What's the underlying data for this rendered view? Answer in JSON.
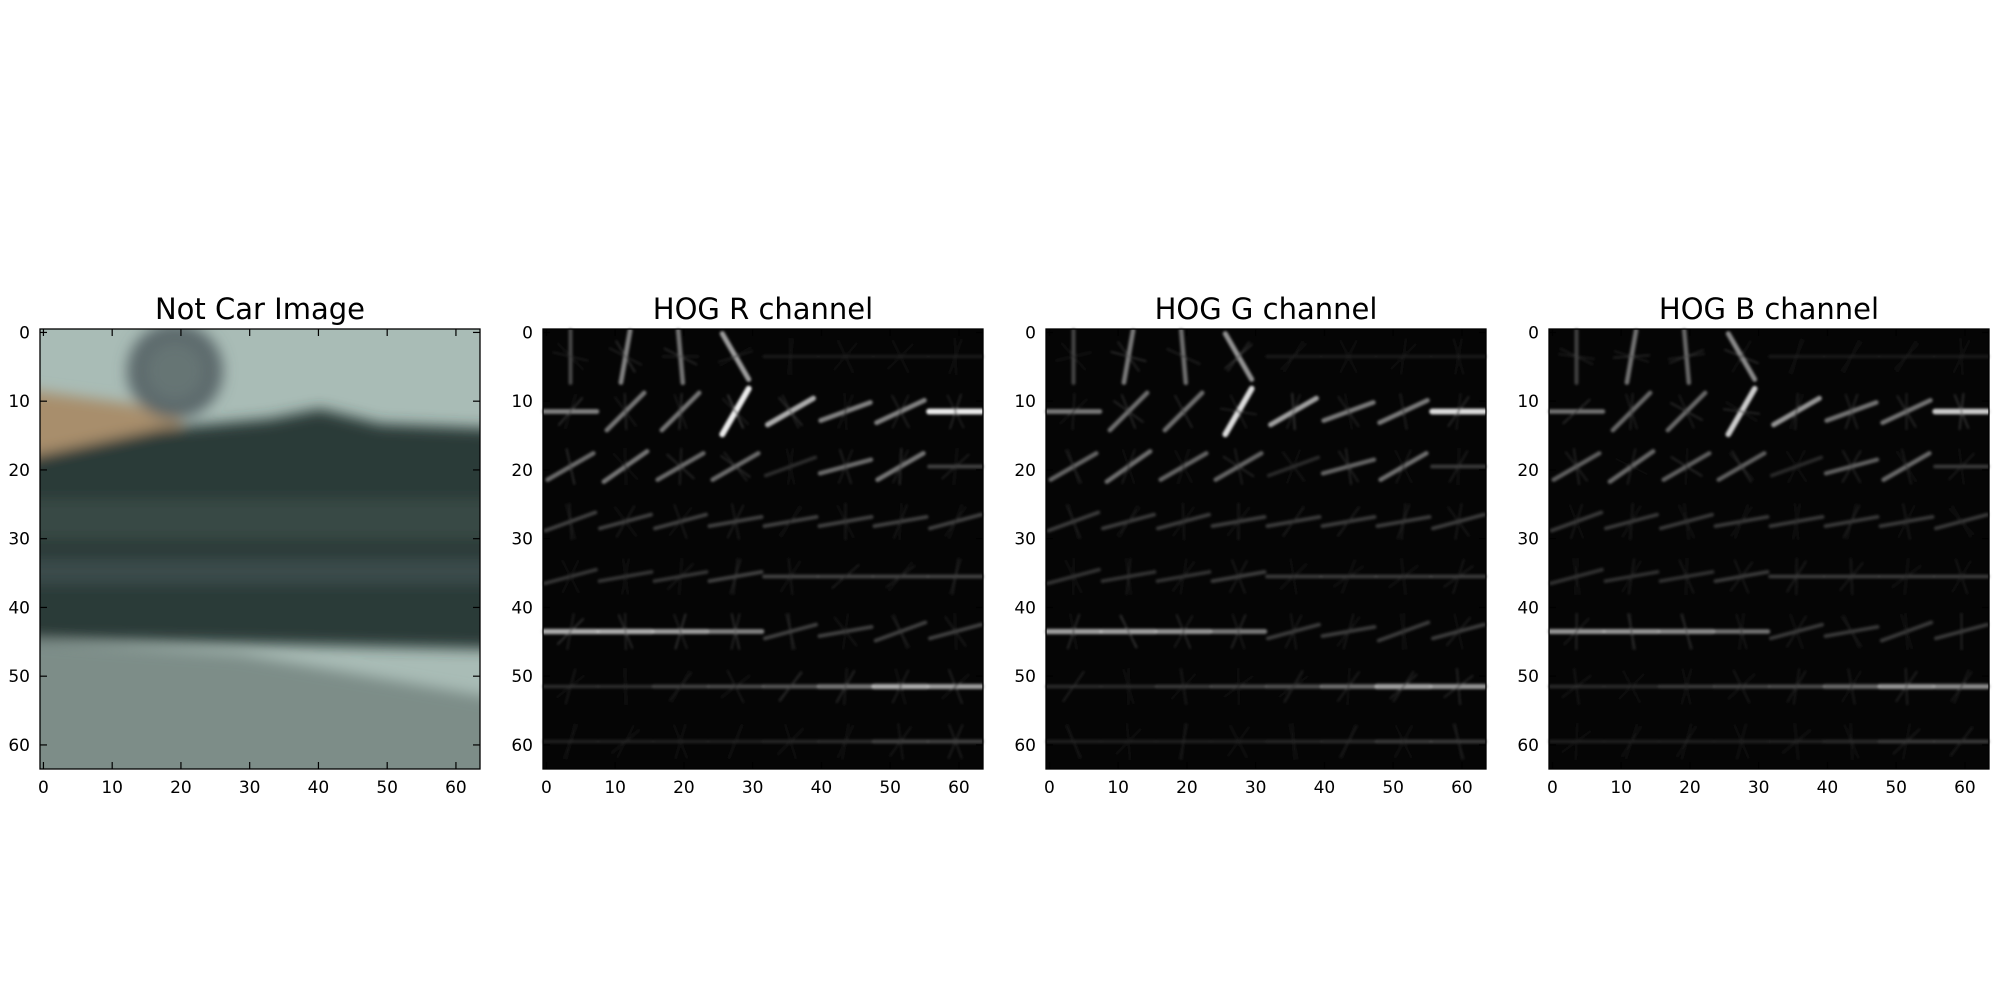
{
  "figure": {
    "panels": [
      {
        "id": "not-car",
        "title": "Not Car Image",
        "kind": "photo",
        "xticks": [
          "0",
          "10",
          "20",
          "30",
          "40",
          "50",
          "60"
        ],
        "yticks": [
          "0",
          "10",
          "20",
          "30",
          "40",
          "50",
          "60"
        ]
      },
      {
        "id": "hog-r",
        "title": "HOG R channel",
        "kind": "hog",
        "xticks": [
          "0",
          "10",
          "20",
          "30",
          "40",
          "50",
          "60"
        ],
        "yticks": [
          "0",
          "10",
          "20",
          "30",
          "40",
          "50",
          "60"
        ]
      },
      {
        "id": "hog-g",
        "title": "HOG G channel",
        "kind": "hog",
        "xticks": [
          "0",
          "10",
          "20",
          "30",
          "40",
          "50",
          "60"
        ],
        "yticks": [
          "0",
          "10",
          "20",
          "30",
          "40",
          "50",
          "60"
        ]
      },
      {
        "id": "hog-b",
        "title": "HOG B channel",
        "kind": "hog",
        "xticks": [
          "0",
          "10",
          "20",
          "30",
          "40",
          "50",
          "60"
        ],
        "yticks": [
          "0",
          "10",
          "20",
          "30",
          "40",
          "50",
          "60"
        ]
      }
    ],
    "image_extent": [
      64,
      64
    ],
    "colors": {
      "hog_background": "#050505",
      "photo_sky": "#a9bcb6",
      "photo_hill": "#a88e6c",
      "photo_trees": "#2c3b38",
      "photo_road": "#7d8d88"
    }
  }
}
